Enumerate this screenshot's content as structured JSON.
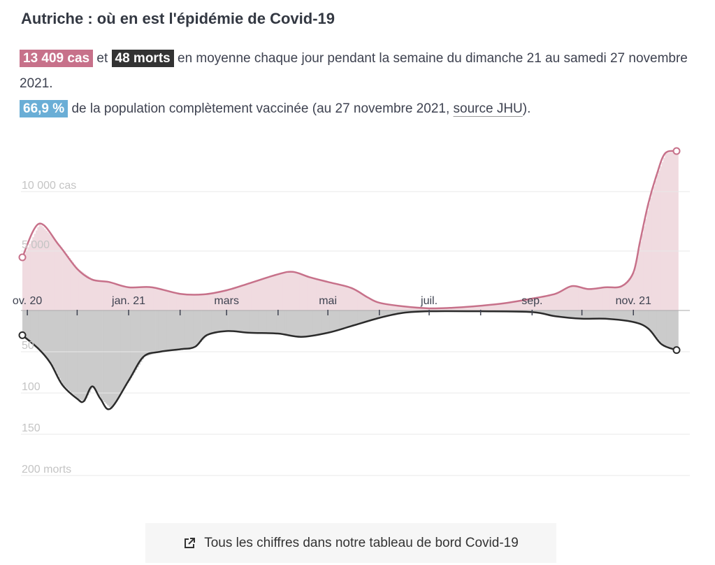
{
  "title": "Autriche : où en est l'épidémie de Covid-19",
  "summary": {
    "cases_badge": "13 409 cas",
    "and": "et",
    "deaths_badge": "48 morts",
    "text1": "en moyenne chaque jour pendant la semaine du dimanche 21 au samedi 27 novembre 2021.",
    "vacc_badge": "66,9 %",
    "text2": "de la population complètement vaccinée (au 27 novembre 2021,",
    "source_link": "source JHU",
    "text3": ")."
  },
  "footer": {
    "link_label": "Tous les chiffres dans notre tableau de bord Covid-19",
    "icon": "external-link-icon"
  },
  "colors": {
    "cases": "#c7718a",
    "cases_bars": "#f0dbe0",
    "deaths": "#2b2b2b",
    "deaths_bars": "#cbcbcb",
    "vaccination": "#6aaed6"
  },
  "chart_data": {
    "type": "area",
    "x_range": [
      "2020-10-29",
      "2021-11-27"
    ],
    "x_ticks": [
      {
        "date": "2020-11-01",
        "label": "ov. 20"
      },
      {
        "date": "2020-12-01",
        "label": ""
      },
      {
        "date": "2021-01-01",
        "label": "jan. 21"
      },
      {
        "date": "2021-02-01",
        "label": ""
      },
      {
        "date": "2021-03-01",
        "label": "mars"
      },
      {
        "date": "2021-04-01",
        "label": ""
      },
      {
        "date": "2021-05-01",
        "label": "mai"
      },
      {
        "date": "2021-06-01",
        "label": ""
      },
      {
        "date": "2021-07-01",
        "label": "juil."
      },
      {
        "date": "2021-08-01",
        "label": ""
      },
      {
        "date": "2021-09-01",
        "label": "sep."
      },
      {
        "date": "2021-10-01",
        "label": ""
      },
      {
        "date": "2021-11-01",
        "label": "nov. 21"
      }
    ],
    "cases_axis": {
      "ylim": [
        0,
        15000
      ],
      "ticks": [
        {
          "value": 5000,
          "label": "5 000"
        },
        {
          "value": 10000,
          "label": "10 000 cas"
        }
      ]
    },
    "deaths_axis": {
      "ylim": [
        0,
        220
      ],
      "direction": "downward",
      "ticks": [
        {
          "value": 50,
          "label": "50"
        },
        {
          "value": 100,
          "label": "100"
        },
        {
          "value": 150,
          "label": "150"
        },
        {
          "value": 200,
          "label": "200 morts"
        }
      ]
    },
    "series": [
      {
        "key": "cases",
        "points": [
          [
            "2020-10-29",
            4470
          ],
          [
            "2020-11-08",
            7300
          ],
          [
            "2020-11-20",
            5500
          ],
          [
            "2020-12-01",
            3500
          ],
          [
            "2020-12-10",
            2600
          ],
          [
            "2020-12-20",
            2400
          ],
          [
            "2021-01-01",
            1950
          ],
          [
            "2021-01-15",
            1950
          ],
          [
            "2021-02-01",
            1400
          ],
          [
            "2021-02-15",
            1350
          ],
          [
            "2021-03-01",
            1700
          ],
          [
            "2021-03-15",
            2300
          ],
          [
            "2021-04-01",
            3050
          ],
          [
            "2021-04-10",
            3250
          ],
          [
            "2021-04-20",
            2800
          ],
          [
            "2021-05-01",
            2400
          ],
          [
            "2021-05-15",
            1900
          ],
          [
            "2021-05-25",
            1100
          ],
          [
            "2021-06-01",
            650
          ],
          [
            "2021-06-15",
            350
          ],
          [
            "2021-07-01",
            180
          ],
          [
            "2021-07-15",
            230
          ],
          [
            "2021-08-01",
            400
          ],
          [
            "2021-08-15",
            600
          ],
          [
            "2021-09-01",
            1000
          ],
          [
            "2021-09-15",
            1400
          ],
          [
            "2021-09-25",
            2050
          ],
          [
            "2021-10-05",
            1800
          ],
          [
            "2021-10-15",
            1950
          ],
          [
            "2021-10-25",
            2050
          ],
          [
            "2021-11-01",
            3200
          ],
          [
            "2021-11-05",
            5800
          ],
          [
            "2021-11-10",
            9000
          ],
          [
            "2021-11-15",
            11400
          ],
          [
            "2021-11-20",
            13200
          ],
          [
            "2021-11-27",
            13409
          ]
        ]
      },
      {
        "key": "deaths",
        "points": [
          [
            "2020-10-29",
            30
          ],
          [
            "2020-11-08",
            47
          ],
          [
            "2020-11-15",
            64
          ],
          [
            "2020-11-22",
            90
          ],
          [
            "2020-12-01",
            107
          ],
          [
            "2020-12-05",
            110
          ],
          [
            "2020-12-10",
            92
          ],
          [
            "2020-12-15",
            107
          ],
          [
            "2020-12-21",
            119
          ],
          [
            "2021-01-01",
            85
          ],
          [
            "2021-01-10",
            56
          ],
          [
            "2021-01-20",
            50
          ],
          [
            "2021-02-01",
            47
          ],
          [
            "2021-02-10",
            44
          ],
          [
            "2021-02-17",
            30
          ],
          [
            "2021-03-01",
            25
          ],
          [
            "2021-03-15",
            27
          ],
          [
            "2021-04-01",
            28
          ],
          [
            "2021-04-15",
            32
          ],
          [
            "2021-05-01",
            27
          ],
          [
            "2021-05-15",
            19
          ],
          [
            "2021-06-01",
            9
          ],
          [
            "2021-06-15",
            3
          ],
          [
            "2021-07-01",
            1
          ],
          [
            "2021-08-01",
            1
          ],
          [
            "2021-09-01",
            2
          ],
          [
            "2021-09-15",
            7
          ],
          [
            "2021-10-01",
            10
          ],
          [
            "2021-10-15",
            10
          ],
          [
            "2021-11-01",
            14
          ],
          [
            "2021-11-10",
            22
          ],
          [
            "2021-11-18",
            41
          ],
          [
            "2021-11-27",
            48
          ]
        ]
      }
    ]
  }
}
